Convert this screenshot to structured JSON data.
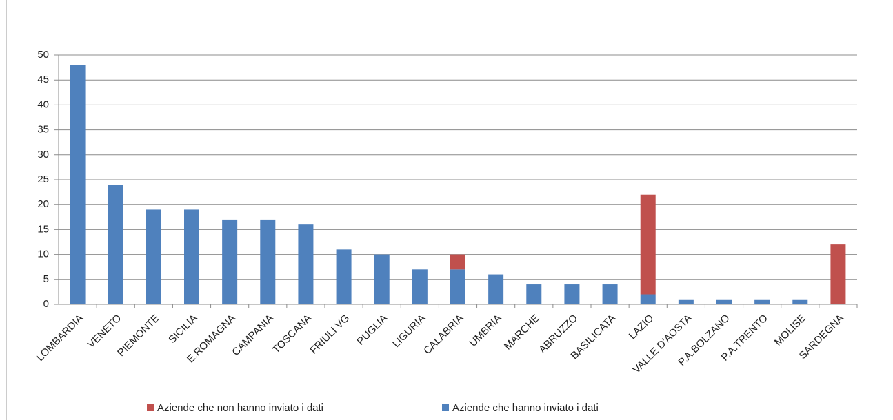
{
  "chart_data": {
    "type": "stacked_bar",
    "categories": [
      "LOMBARDIA",
      "VENETO",
      "PIEMONTE",
      "SICILIA",
      "E.ROMAGNA",
      "CAMPANIA",
      "TOSCANA",
      "FRIULI VG",
      "PUGLIA",
      "LIGURIA",
      "CALABRIA",
      "UMBRIA",
      "MARCHE",
      "ABRUZZO",
      "BASILICATA",
      "LAZIO",
      "VALLE D'AOSTA",
      "P.A.BOLZANO",
      "P.A.TRENTO",
      "MOLISE",
      "SARDEGNA"
    ],
    "series": [
      {
        "name": "Aziende che non hanno inviato i dati",
        "color": "#c0504d",
        "values": [
          0,
          0,
          0,
          0,
          0,
          0,
          0,
          0,
          0,
          0,
          3,
          0,
          0,
          0,
          0,
          20,
          0,
          0,
          0,
          0,
          12
        ]
      },
      {
        "name": "Aziende che hanno inviato i dati",
        "color": "#4f81bd",
        "values": [
          48,
          24,
          19,
          19,
          17,
          17,
          16,
          11,
          10,
          7,
          7,
          6,
          4,
          4,
          4,
          2,
          1,
          1,
          1,
          1,
          0
        ]
      }
    ],
    "ylim": [
      0,
      50
    ],
    "yticks": [
      0,
      5,
      10,
      15,
      20,
      25,
      30,
      35,
      40,
      45,
      50
    ],
    "grid": true,
    "legend": "bottom"
  }
}
